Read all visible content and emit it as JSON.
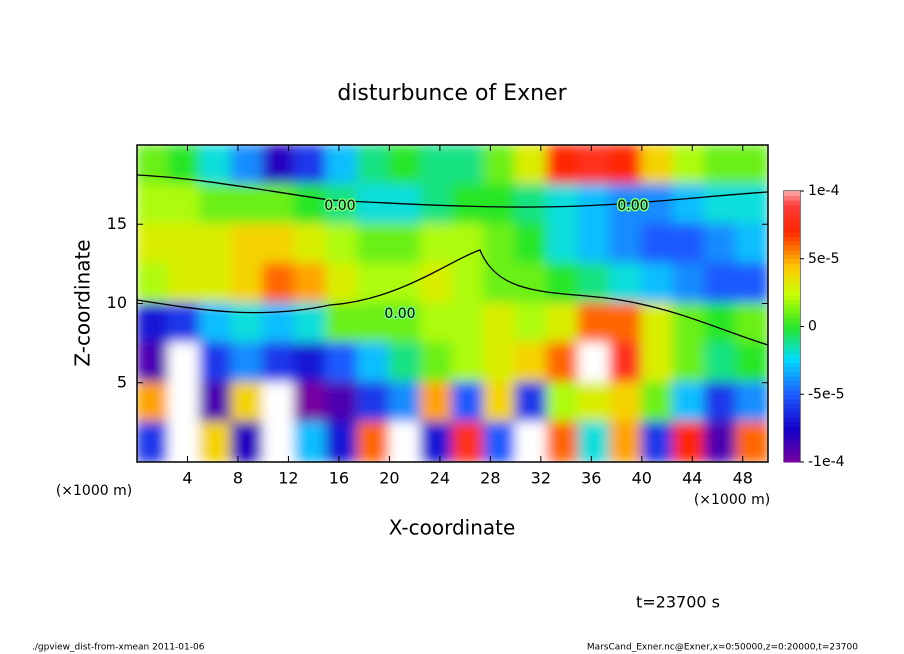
{
  "chart_data": {
    "type": "heatmap",
    "title": "disturbunce of Exner",
    "x_label": "X-coordinate",
    "y_label": "Z-coordinate",
    "x_unit_labels": [
      "(×1000 m)",
      "(×1000 m)"
    ],
    "xlim": [
      0,
      50
    ],
    "ylim": [
      0,
      20
    ],
    "xticks": [
      4,
      8,
      12,
      16,
      20,
      24,
      28,
      32,
      36,
      40,
      44,
      48
    ],
    "yticks": [
      5,
      10,
      15
    ],
    "zlim": [
      -0.0001,
      0.0001
    ],
    "zticks": [
      {
        "value": 0.0001,
        "label": "1e-4"
      },
      {
        "value": 5e-05,
        "label": "5e-5"
      },
      0,
      {
        "value": -5e-05,
        "label": "-5e-5"
      },
      {
        "value": -0.0001,
        "label": "-1e-4"
      }
    ],
    "contour_labels": [
      "0.00",
      "0.00",
      "0.00"
    ],
    "annotation": "t=23700 s",
    "footer_left": "./gpview_dist-from-xmean  2011-01-06",
    "footer_right": "MarsCand_Exner.nc@Exner,x=0:50000,z=0:20000,t=23700",
    "z": [
      [
        1e-05,
        0,
        -2e-05,
        -4e-05,
        -8e-05,
        -6e-05,
        -3e-05,
        -1e-05,
        0,
        -1e-05,
        -1e-05,
        1e-05,
        3e-05,
        7e-05,
        8e-05,
        7e-05,
        4e-05,
        2e-05,
        1e-05,
        1e-05
      ],
      [
        2e-05,
        2e-05,
        1e-05,
        1e-05,
        1e-05,
        0,
        -1e-05,
        -2e-05,
        -2e-05,
        -1e-05,
        0,
        0,
        -1e-05,
        -2e-05,
        -3e-05,
        -4e-05,
        -4e-05,
        -3e-05,
        -2e-05,
        -2e-05
      ],
      [
        3e-05,
        3e-05,
        3e-05,
        4e-05,
        4e-05,
        3e-05,
        2e-05,
        1e-05,
        1e-05,
        2e-05,
        2e-05,
        1e-05,
        0,
        -2e-05,
        -3e-05,
        -4e-05,
        -5e-05,
        -5e-05,
        -4e-05,
        -3e-05
      ],
      [
        2e-05,
        3e-05,
        3e-05,
        4e-05,
        6e-05,
        5e-05,
        3e-05,
        2e-05,
        2e-05,
        3e-05,
        2e-05,
        1e-05,
        1e-05,
        0,
        -1e-05,
        -2e-05,
        -3e-05,
        -4e-05,
        -5e-05,
        -5e-05
      ],
      [
        -7e-05,
        -6e-05,
        -3e-05,
        -2e-05,
        -3e-05,
        -2e-05,
        1e-05,
        1e-05,
        1e-05,
        2e-05,
        2e-05,
        3e-05,
        2e-05,
        3e-05,
        6e-05,
        6e-05,
        3e-05,
        1e-05,
        0,
        1e-05
      ],
      [
        -9e-05,
        -0.00012,
        -6e-05,
        -4e-05,
        -6e-05,
        -7e-05,
        -5e-05,
        -3e-05,
        -1e-05,
        1e-05,
        2e-05,
        3e-05,
        4e-05,
        6e-05,
        0.00011,
        8e-05,
        3e-05,
        1e-05,
        -1e-05,
        0
      ],
      [
        5e-05,
        -0.00011,
        -9e-05,
        4e-05,
        -0.00012,
        -0.0001,
        -9e-05,
        -6e-05,
        -4e-05,
        5e-05,
        -5e-05,
        4e-05,
        -6e-05,
        2e-05,
        3e-05,
        4e-05,
        1e-05,
        -3e-05,
        -6e-05,
        -4e-05
      ],
      [
        -6e-05,
        0.00011,
        4e-05,
        -8e-05,
        0.00012,
        -3e-05,
        -7e-05,
        6e-05,
        0.00011,
        -7e-05,
        8e-05,
        -5e-05,
        -0.00011,
        6e-05,
        -2e-05,
        5e-05,
        -6e-05,
        7e-05,
        -9e-05,
        6e-05
      ]
    ]
  }
}
